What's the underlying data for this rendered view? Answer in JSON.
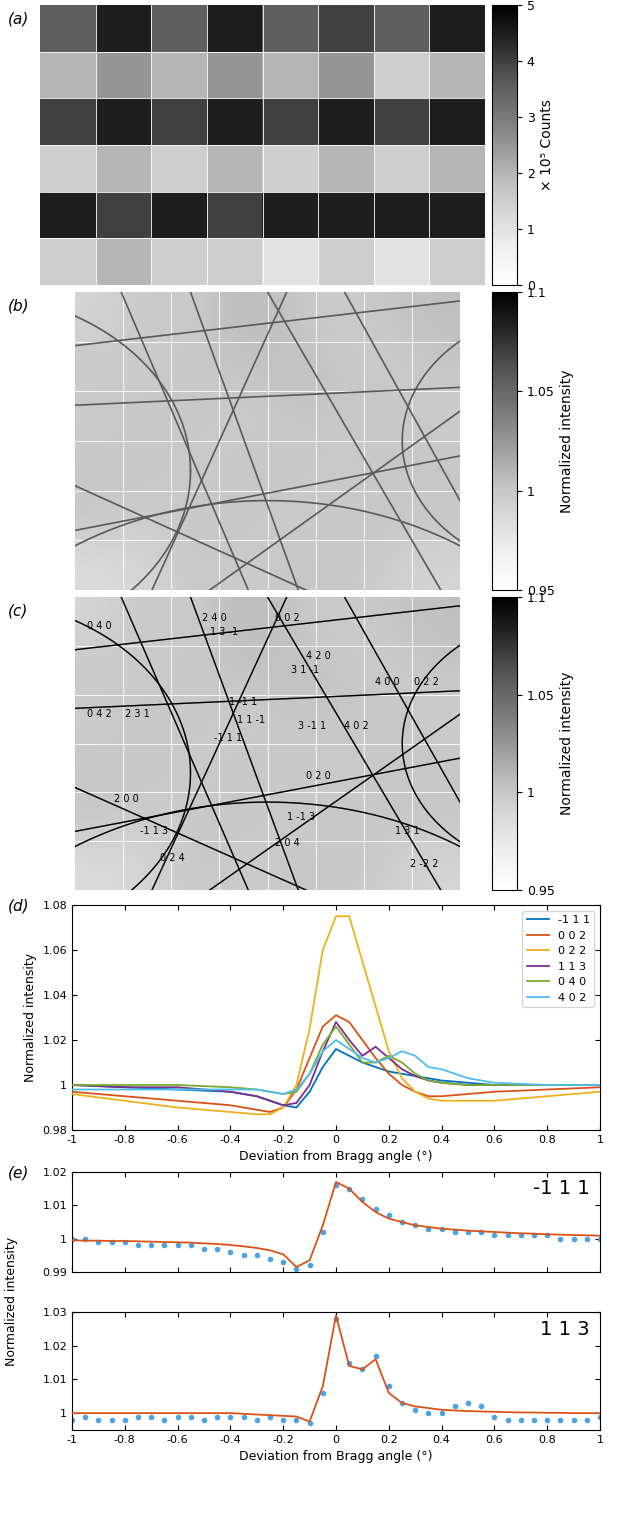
{
  "chart_data": [
    {
      "type": "heatmap",
      "panel_label": "(a)",
      "tick_labels": false,
      "cells": [
        [
          3.5,
          4.5,
          3.5,
          4.5,
          3.5,
          4.0,
          3.5,
          4.5
        ],
        [
          2.0,
          2.5,
          2.0,
          2.5,
          2.0,
          2.5,
          1.5,
          2.0
        ],
        [
          4.0,
          4.5,
          4.0,
          4.5,
          4.0,
          4.5,
          4.0,
          4.5
        ],
        [
          1.5,
          2.0,
          1.5,
          2.0,
          1.5,
          2.0,
          1.5,
          2.0
        ],
        [
          4.5,
          4.0,
          4.5,
          4.0,
          4.5,
          4.5,
          4.5,
          4.5
        ],
        [
          1.5,
          2.0,
          1.5,
          1.5,
          1.0,
          1.5,
          1.0,
          1.5
        ]
      ],
      "colorbar": {
        "range": [
          0,
          5
        ],
        "ticks": [
          0,
          1,
          2,
          3,
          4,
          5
        ],
        "label": "× 10⁵ Counts"
      }
    },
    {
      "type": "image",
      "panel_label": "(b)",
      "tick_labels": false,
      "cells": [
        [
          0.99,
          1.0,
          0.995,
          1.01,
          1.0,
          0.995,
          1.0,
          1.005
        ],
        [
          1.0,
          0.995,
          1.0,
          1.0,
          1.005,
          1.0,
          0.995,
          1.0
        ],
        [
          0.995,
          1.0,
          1.0,
          0.995,
          1.0,
          1.0,
          1.0,
          0.995
        ],
        [
          1.0,
          1.0,
          0.995,
          1.0,
          1.0,
          0.995,
          1.0,
          1.0
        ],
        [
          1.0,
          0.995,
          1.0,
          1.0,
          0.995,
          1.0,
          1.0,
          1.0
        ],
        [
          0.985,
          0.99,
          1.0,
          0.995,
          1.0,
          1.0,
          0.995,
          0.99
        ]
      ],
      "colorbar": {
        "range": [
          0.95,
          1.1
        ],
        "ticks": [
          0.95,
          1,
          1.05,
          1.1
        ],
        "label": "Normalized intensity"
      }
    },
    {
      "type": "image",
      "panel_label": "(c)",
      "tick_labels": false,
      "cells": [
        [
          0.99,
          1.0,
          0.995,
          1.01,
          1.0,
          0.995,
          1.0,
          1.005
        ],
        [
          1.0,
          0.995,
          1.0,
          1.0,
          1.005,
          1.0,
          0.995,
          1.0
        ],
        [
          0.995,
          1.0,
          1.0,
          0.995,
          1.0,
          1.0,
          1.0,
          0.995
        ],
        [
          1.0,
          1.0,
          0.995,
          1.0,
          1.0,
          0.995,
          1.0,
          1.0
        ],
        [
          1.0,
          0.995,
          1.0,
          1.0,
          0.995,
          1.0,
          1.0,
          1.0
        ],
        [
          0.985,
          0.99,
          1.0,
          0.995,
          1.0,
          1.0,
          0.995,
          0.99
        ]
      ],
      "annotations": [
        "0 4 0",
        "2 4 0",
        "0 0 2",
        "1 3 -1",
        "4 2 0",
        "3 1 -1",
        "4 0 0",
        "0 2 2",
        "0 4 2",
        "2 3 1",
        "1 -1 1",
        "1 1 -1",
        "-1 1 1",
        "3 -1 1",
        "4 0 2",
        "0 2 0",
        "2 0 0",
        "1 -1 3",
        "1 3 1",
        "-1 1 3",
        "2 0 4",
        "0 2 4",
        "2 -2 2"
      ],
      "colorbar": {
        "range": [
          0.95,
          1.1
        ],
        "ticks": [
          0.95,
          1,
          1.05,
          1.1
        ],
        "label": "Normalized intensity"
      }
    },
    {
      "type": "line",
      "panel_label": "(d)",
      "x": [
        -1,
        -0.8,
        -0.6,
        -0.4,
        -0.3,
        -0.25,
        -0.2,
        -0.15,
        -0.1,
        -0.05,
        0,
        0.05,
        0.1,
        0.15,
        0.2,
        0.25,
        0.3,
        0.35,
        0.4,
        0.5,
        0.6,
        0.8,
        1
      ],
      "series": [
        {
          "name": "-1 1 1",
          "color": "#0072BD",
          "values": [
            1.0,
            0.999,
            0.998,
            0.997,
            0.995,
            0.993,
            0.991,
            0.99,
            0.997,
            1.008,
            1.016,
            1.013,
            1.01,
            1.008,
            1.006,
            1.005,
            1.004,
            1.003,
            1.002,
            1.001,
            1.0,
            1.0,
            1.0
          ]
        },
        {
          "name": "0 0 2",
          "color": "#D95319",
          "values": [
            0.997,
            0.995,
            0.993,
            0.991,
            0.989,
            0.988,
            0.99,
            0.998,
            1.012,
            1.026,
            1.031,
            1.028,
            1.02,
            1.012,
            1.005,
            1.0,
            0.997,
            0.995,
            0.995,
            0.996,
            0.997,
            0.998,
            0.999
          ]
        },
        {
          "name": "0 2 2",
          "color": "#EDB120",
          "values": [
            0.996,
            0.993,
            0.99,
            0.988,
            0.987,
            0.987,
            0.99,
            1.0,
            1.025,
            1.06,
            1.075,
            1.075,
            1.055,
            1.035,
            1.015,
            1.003,
            0.997,
            0.994,
            0.993,
            0.993,
            0.993,
            0.995,
            0.997
          ]
        },
        {
          "name": "1 1 3",
          "color": "#7E2F8E",
          "values": [
            1.0,
            0.999,
            0.999,
            0.997,
            0.995,
            0.993,
            0.991,
            0.992,
            1.0,
            1.015,
            1.028,
            1.02,
            1.013,
            1.017,
            1.012,
            1.007,
            1.004,
            1.002,
            1.001,
            1.0,
            1.0,
            1.0,
            1.0
          ]
        },
        {
          "name": "0 4 0",
          "color": "#77AC30",
          "values": [
            1.0,
            1.0,
            1.0,
            0.999,
            0.998,
            0.997,
            0.996,
            0.997,
            1.005,
            1.018,
            1.026,
            1.018,
            1.01,
            1.01,
            1.013,
            1.01,
            1.005,
            1.002,
            1.001,
            1.0,
            1.0,
            1.0,
            1.0
          ]
        },
        {
          "name": "4 0 2",
          "color": "#4DBEEE",
          "values": [
            0.998,
            0.998,
            0.998,
            0.998,
            0.998,
            0.997,
            0.996,
            0.998,
            1.005,
            1.015,
            1.02,
            1.016,
            1.012,
            1.01,
            1.012,
            1.015,
            1.013,
            1.008,
            1.007,
            1.003,
            1.001,
            1.0,
            1.0
          ]
        }
      ],
      "xlim": [
        -1,
        1
      ],
      "xticks": [
        -1,
        -0.8,
        -0.6,
        -0.4,
        -0.2,
        0,
        0.2,
        0.4,
        0.6,
        0.8,
        1
      ],
      "ylim": [
        0.98,
        1.08
      ],
      "yticks": [
        0.98,
        1,
        1.02,
        1.04,
        1.06,
        1.08
      ],
      "xlabel": "Deviation from Bragg angle (°)",
      "ylabel": "Normalized intensity",
      "legend": "upper right"
    },
    {
      "type": "line",
      "panel_label": "(e)",
      "annotation": "-1 1 1",
      "tick_labels": "y",
      "x": [
        -1,
        -0.95,
        -0.9,
        -0.85,
        -0.8,
        -0.75,
        -0.7,
        -0.65,
        -0.6,
        -0.55,
        -0.5,
        -0.45,
        -0.4,
        -0.35,
        -0.3,
        -0.25,
        -0.2,
        -0.15,
        -0.1,
        -0.05,
        0,
        0.05,
        0.1,
        0.15,
        0.2,
        0.25,
        0.3,
        0.35,
        0.4,
        0.45,
        0.5,
        0.55,
        0.6,
        0.65,
        0.7,
        0.75,
        0.8,
        0.85,
        0.9,
        0.95,
        1
      ],
      "series": [
        {
          "type": "scatter",
          "marker": "o",
          "color": "#4DA3E0",
          "values": [
            1.0,
            1.0,
            0.999,
            0.999,
            0.999,
            0.998,
            0.998,
            0.998,
            0.998,
            0.998,
            0.997,
            0.997,
            0.996,
            0.995,
            0.995,
            0.994,
            0.993,
            0.991,
            0.992,
            1.002,
            1.016,
            1.015,
            1.012,
            1.009,
            1.007,
            1.005,
            1.004,
            1.003,
            1.003,
            1.002,
            1.002,
            1.002,
            1.001,
            1.001,
            1.001,
            1.001,
            1.001,
            1.0,
            1.0,
            1.0,
            1.0
          ]
        },
        {
          "type": "line",
          "color": "#D95319",
          "values": [
            0.9995,
            0.9994,
            0.9994,
            0.9993,
            0.9993,
            0.9992,
            0.9991,
            0.999,
            0.9989,
            0.9988,
            0.9986,
            0.9984,
            0.9981,
            0.9977,
            0.9972,
            0.9965,
            0.9953,
            0.9915,
            0.9935,
            1.004,
            1.017,
            1.015,
            1.011,
            1.008,
            1.006,
            1.005,
            1.004,
            1.0035,
            1.003,
            1.0027,
            1.0024,
            1.0022,
            1.002,
            1.0018,
            1.0016,
            1.0015,
            1.0013,
            1.0012,
            1.0011,
            1.001,
            1.0009
          ]
        }
      ],
      "xlim": [
        -1,
        1
      ],
      "xticks": [
        -1,
        -0.8,
        -0.6,
        -0.4,
        -0.2,
        0,
        0.2,
        0.4,
        0.6,
        0.8,
        1
      ],
      "ylim": [
        0.99,
        1.02
      ],
      "yticks": [
        0.99,
        1,
        1.01,
        1.02
      ],
      "ylabel": "Normalized intensity"
    },
    {
      "type": "line",
      "annotation": "1 1 3",
      "x": [
        -1,
        -0.95,
        -0.9,
        -0.85,
        -0.8,
        -0.75,
        -0.7,
        -0.65,
        -0.6,
        -0.55,
        -0.5,
        -0.45,
        -0.4,
        -0.35,
        -0.3,
        -0.25,
        -0.2,
        -0.15,
        -0.1,
        -0.05,
        0,
        0.05,
        0.1,
        0.15,
        0.2,
        0.25,
        0.3,
        0.35,
        0.4,
        0.45,
        0.5,
        0.55,
        0.6,
        0.65,
        0.7,
        0.75,
        0.8,
        0.85,
        0.9,
        0.95,
        1
      ],
      "series": [
        {
          "type": "scatter",
          "marker": "o",
          "color": "#4DA3E0",
          "values": [
            0.998,
            0.999,
            0.998,
            0.998,
            0.998,
            0.999,
            0.999,
            0.998,
            0.999,
            0.999,
            0.998,
            0.999,
            0.999,
            0.999,
            0.998,
            0.999,
            0.998,
            0.998,
            0.997,
            1.006,
            1.028,
            1.015,
            1.013,
            1.017,
            1.008,
            1.003,
            1.001,
            1.0,
            1.0,
            1.002,
            1.003,
            1.002,
            0.999,
            0.998,
            0.998,
            0.998,
            0.998,
            0.998,
            0.998,
            0.998,
            0.999
          ]
        },
        {
          "type": "line",
          "color": "#D95319",
          "values": [
            1.0,
            1.0,
            1.0,
            1.0,
            1.0,
            1.0,
            1.0,
            1.0,
            1.0,
            1.0,
            1.0,
            1.0,
            1.0,
            0.9998,
            0.9996,
            0.9994,
            0.9992,
            0.999,
            0.9975,
            1.008,
            1.029,
            1.014,
            1.013,
            1.016,
            1.006,
            1.003,
            1.002,
            1.0015,
            1.001,
            1.0008,
            1.0006,
            1.0005,
            1.0004,
            1.0003,
            1.0002,
            1.0002,
            1.0001,
            1.0001,
            1.0,
            1.0,
            1.0
          ]
        }
      ],
      "xlim": [
        -1,
        1
      ],
      "xticks": [
        -1,
        -0.8,
        -0.6,
        -0.4,
        -0.2,
        0,
        0.2,
        0.4,
        0.6,
        0.8,
        1
      ],
      "ylim": [
        0.995,
        1.03
      ],
      "yticks": [
        1,
        1.01,
        1.02,
        1.03
      ],
      "xlabel": "Deviation from Bragg angle (°)"
    }
  ]
}
